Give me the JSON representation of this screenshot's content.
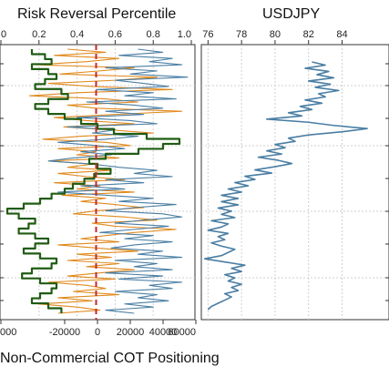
{
  "chart_data": [
    {
      "type": "line",
      "title": "Risk Reversal Percentile",
      "xlabel": "Non-Commercial COT Positioning",
      "x_top_ticks": [
        "0",
        "0.2",
        "0.4",
        "0.6",
        "0.8",
        "1.0"
      ],
      "x_bottom_ticks": [
        "000",
        "-20000",
        "0",
        "20000",
        "40000",
        "60000"
      ],
      "xlim_percentile": [
        0,
        1
      ],
      "xlim_cot": [
        -60000,
        60000
      ],
      "reference_line_at": 0.5,
      "grid": true,
      "colors": {
        "percentile_a": "#e08a1e",
        "percentile_b": "#4a7ea3",
        "cot": "#1f5c12",
        "reference": "#c62828"
      },
      "series": [
        {
          "key": "percentile_a",
          "values": [
            0.35,
            0.55,
            0.28,
            0.62,
            0.45,
            0.18,
            0.7,
            0.52,
            0.31,
            0.82,
            0.6,
            0.25,
            0.48,
            0.9,
            0.4,
            0.15,
            0.55,
            0.72,
            0.35,
            0.5,
            0.95,
            0.6,
            0.28,
            0.45,
            0.7,
            0.33,
            0.58,
            0.8,
            0.42,
            0.22,
            0.55,
            0.68,
            0.3,
            0.5,
            0.4,
            0.62,
            0.25,
            0.48,
            0.35,
            0.58,
            0.3,
            0.45,
            0.65,
            0.28,
            0.52,
            0.4,
            0.7,
            0.32,
            0.55,
            0.42,
            0.6,
            0.75,
            0.5,
            0.38,
            0.65,
            0.82,
            0.48,
            0.6,
            0.92,
            0.7,
            0.55,
            0.42,
            0.62,
            0.3,
            0.5,
            0.72,
            0.4,
            0.58,
            0.35,
            0.62,
            0.45,
            0.7,
            0.52,
            0.35,
            0.6,
            0.25,
            0.45,
            0.55,
            0.38,
            0.62,
            0.3,
            0.48,
            0.2,
            0.4,
            0.52,
            0.3
          ]
        },
        {
          "key": "percentile_b",
          "values": [
            0.72,
            0.85,
            0.62,
            0.9,
            0.78,
            0.95,
            0.55,
            0.82,
            0.68,
            0.98,
            0.6,
            0.75,
            0.88,
            0.5,
            0.8,
            0.65,
            0.92,
            0.45,
            0.7,
            0.85,
            0.55,
            0.75,
            0.4,
            0.68,
            0.82,
            0.35,
            0.6,
            0.48,
            0.72,
            0.55,
            0.3,
            0.5,
            0.65,
            0.42,
            0.58,
            0.38,
            0.25,
            0.48,
            0.62,
            0.82,
            0.7,
            0.9,
            0.55,
            0.75,
            0.42,
            0.65,
            0.3,
            0.55,
            0.8,
            0.62,
            0.92,
            0.7,
            0.55,
            0.85,
            0.95,
            0.75,
            0.6,
            0.88,
            0.7,
            0.52,
            0.8,
            0.65,
            0.9,
            0.7,
            0.58,
            0.85,
            0.72,
            0.95,
            0.6,
            0.82,
            0.7,
            0.9,
            0.55,
            0.85,
            0.62,
            0.95,
            0.78,
            0.9,
            0.6,
            0.82,
            0.72,
            0.88,
            0.65,
            0.8,
            0.55,
            0.7
          ]
        },
        {
          "key": "cot",
          "values": [
            -40000,
            -32000,
            -28000,
            -40000,
            -30000,
            -25000,
            -32000,
            -38000,
            -22000,
            -18000,
            -30000,
            -38000,
            -30000,
            -20000,
            -10000,
            0,
            10000,
            30000,
            50000,
            40000,
            25000,
            5000,
            -5000,
            0,
            8000,
            -2000,
            -8000,
            -15000,
            -20000,
            -28000,
            -35000,
            -45000,
            -55000,
            -48000,
            -38000,
            -42000,
            -48000,
            -38000,
            -30000,
            -38000,
            -45000,
            -35000,
            -25000,
            -28000,
            -40000,
            -46000,
            -35000,
            -25000,
            -28000,
            -35000,
            -40000,
            -30000,
            -22000
          ]
        }
      ]
    },
    {
      "type": "line",
      "title": "USDJPY",
      "x_top_ticks": [
        "76",
        "78",
        "80",
        "82",
        "84"
      ],
      "xlim": [
        75.6,
        86.8
      ],
      "grid": true,
      "colors": {
        "line": "#4a7ea3"
      },
      "series": [
        {
          "key": "usdjpy",
          "values": [
            82.2,
            83.0,
            81.8,
            83.2,
            82.5,
            83.5,
            82.0,
            83.3,
            82.4,
            83.8,
            82.6,
            83.0,
            81.8,
            82.8,
            81.5,
            82.2,
            80.8,
            81.6,
            79.5,
            82.0,
            83.5,
            85.5,
            84.0,
            82.0,
            80.8,
            81.2,
            80.0,
            80.6,
            79.5,
            80.4,
            79.0,
            80.2,
            81.0,
            80.0,
            78.8,
            79.8,
            78.2,
            78.8,
            77.6,
            78.4,
            77.2,
            78.0,
            76.8,
            77.8,
            76.8,
            77.8,
            76.6,
            77.4,
            76.8,
            77.6,
            76.2,
            77.2,
            76.8,
            76.0,
            77.2,
            76.6,
            77.0,
            76.2,
            76.8,
            77.6,
            77.2,
            76.8,
            75.8,
            77.0,
            78.2,
            77.4,
            78.0,
            77.0,
            77.6,
            77.2,
            78.0,
            77.4,
            77.8,
            77.0,
            77.4,
            77.0,
            76.6,
            76.2,
            76.0
          ]
        }
      ]
    }
  ]
}
